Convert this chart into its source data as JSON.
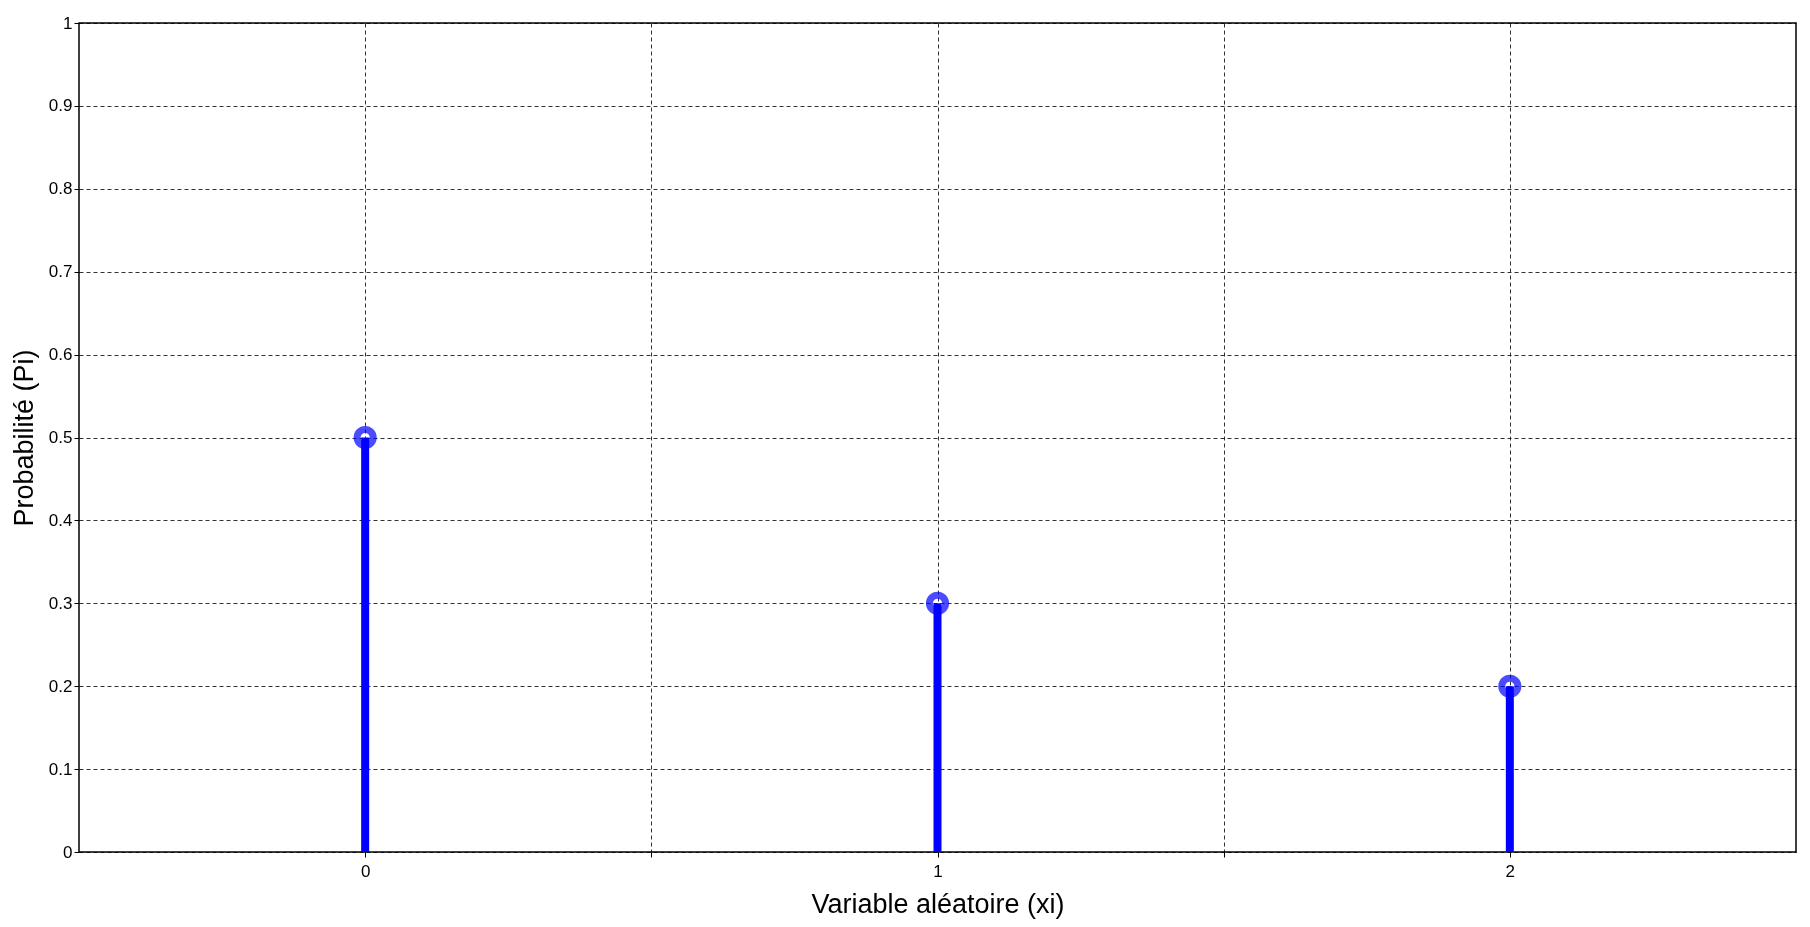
{
  "chart_data": {
    "type": "lollipop",
    "xlabel": "Variable aléatoire (xi)",
    "ylabel": "Probabilité (Pi)",
    "x": [
      0,
      1,
      2
    ],
    "series": [
      {
        "color": "#0000ff",
        "values": [
          0.5,
          0.3,
          0.2
        ]
      }
    ],
    "xlim": [
      -0.5,
      2.5
    ],
    "xticks": [
      0,
      {
        "value": 0.5,
        "label": null
      },
      1,
      {
        "value": 1.5,
        "label": null
      },
      2
    ],
    "ylim": [
      0,
      1
    ],
    "yticks": [
      0,
      0.1,
      0.2,
      0.3,
      0.4,
      0.5,
      0.6,
      0.7,
      0.8,
      0.9,
      1
    ],
    "grid": true,
    "marker": "circle",
    "legend": false
  }
}
